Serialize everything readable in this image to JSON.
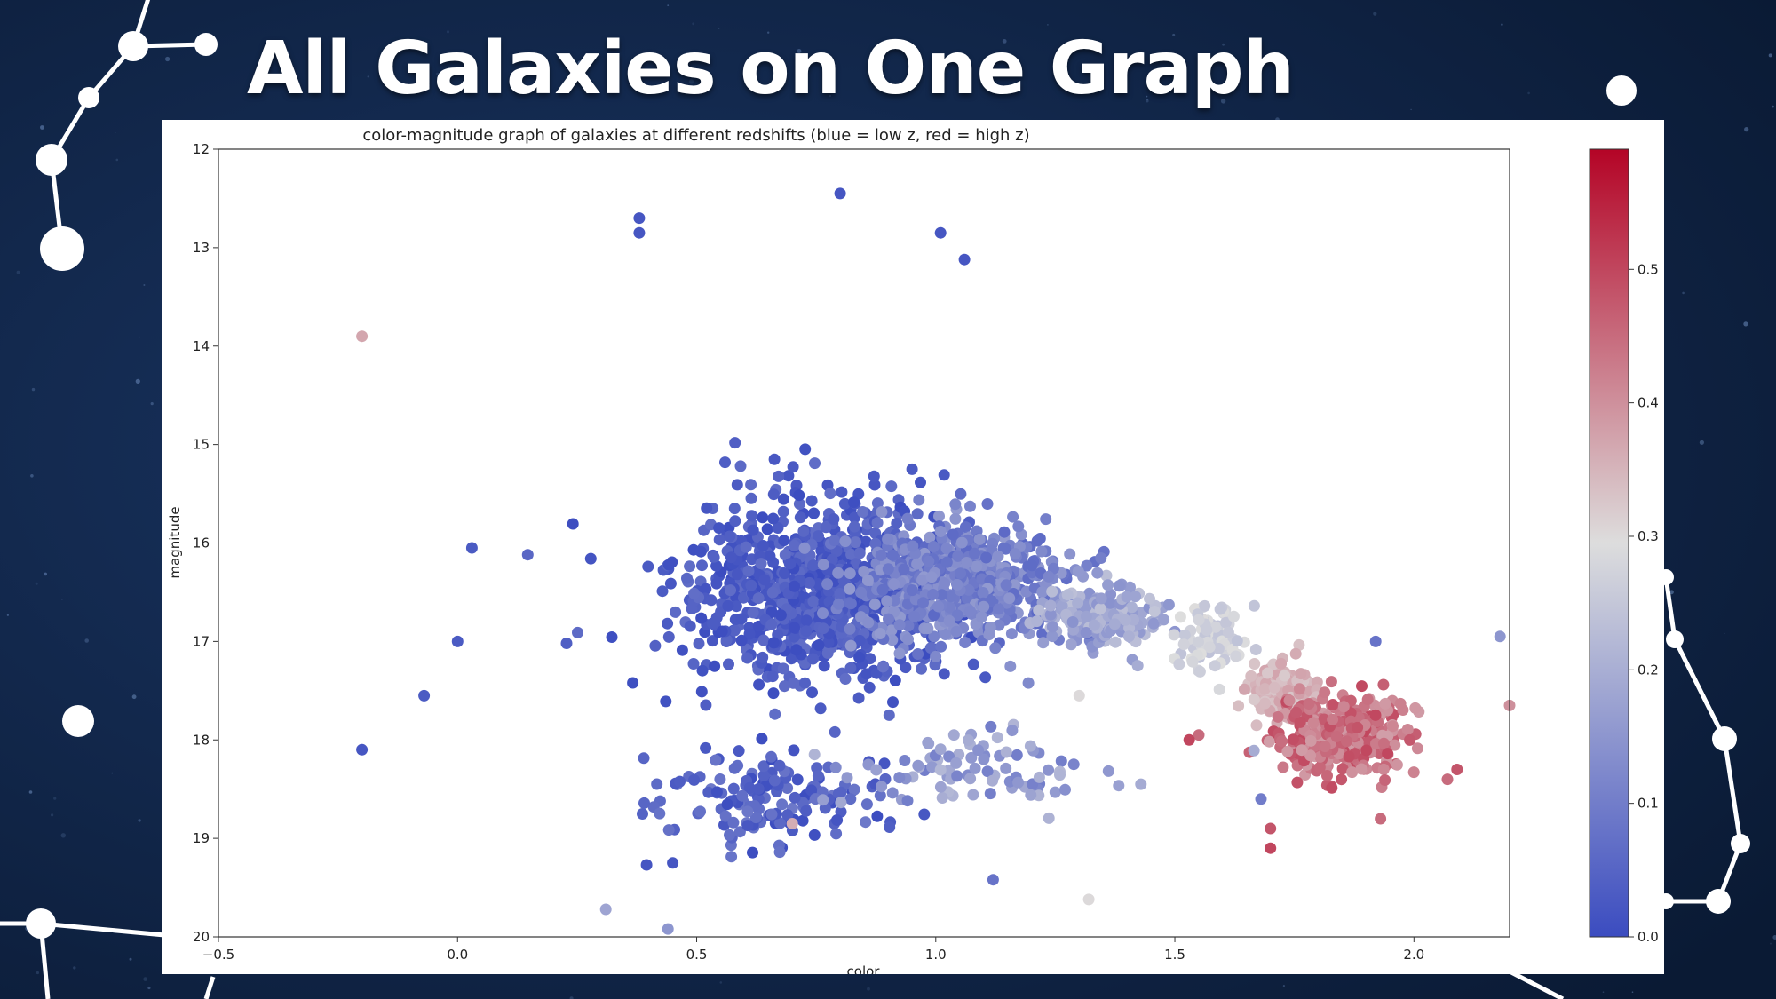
{
  "slide": {
    "title": "All Galaxies on One Graph"
  },
  "colors": {
    "background": "#0c1e3b",
    "panel": "#ffffff",
    "constellation": "#ffffff"
  },
  "chart_data": {
    "type": "scatter",
    "title": "color-magnitude graph of galaxies at different redshifts (blue = low z, red = high z)",
    "xlabel": "color",
    "ylabel": "magnitude",
    "xlim": [
      -0.5,
      2.2
    ],
    "ylim": [
      20,
      12
    ],
    "y_inverted": true,
    "x_ticks": [
      -0.5,
      0.0,
      0.5,
      1.0,
      1.5,
      2.0
    ],
    "x_tick_labels": [
      "−0.5",
      "0.0",
      "0.5",
      "1.0",
      "1.5",
      "2.0"
    ],
    "y_ticks": [
      12,
      13,
      14,
      15,
      16,
      17,
      18,
      19,
      20
    ],
    "y_tick_labels": [
      "12",
      "13",
      "14",
      "15",
      "16",
      "17",
      "18",
      "19",
      "20"
    ],
    "grid": false,
    "colormap": "coolwarm",
    "colorbar": {
      "range": [
        0.0,
        0.59
      ],
      "ticks": [
        0.0,
        0.1,
        0.2,
        0.3,
        0.4,
        0.5
      ],
      "tick_labels": [
        "0.0",
        "0.1",
        "0.2",
        "0.3",
        "0.4",
        "0.5"
      ],
      "low_color": "#3b4cc0",
      "mid_color": "#dddddd",
      "high_color": "#b40426"
    },
    "clusters": [
      {
        "center": [
          0.75,
          16.5
        ],
        "spread": [
          0.25,
          0.75
        ],
        "z": [
          0.0,
          0.07
        ],
        "count": 950
      },
      {
        "center": [
          1.05,
          16.4
        ],
        "spread": [
          0.18,
          0.5
        ],
        "z": [
          0.06,
          0.16
        ],
        "count": 650
      },
      {
        "center": [
          1.35,
          16.75
        ],
        "spread": [
          0.1,
          0.25
        ],
        "z": [
          0.14,
          0.24
        ],
        "count": 200
      },
      {
        "center": [
          1.58,
          16.95
        ],
        "spread": [
          0.06,
          0.25
        ],
        "z": [
          0.24,
          0.3
        ],
        "count": 90
      },
      {
        "center": [
          1.72,
          17.5
        ],
        "spread": [
          0.06,
          0.25
        ],
        "z": [
          0.32,
          0.38
        ],
        "count": 150
      },
      {
        "center": [
          1.85,
          17.95
        ],
        "spread": [
          0.11,
          0.33
        ],
        "z": [
          0.38,
          0.5
        ],
        "count": 380
      },
      {
        "center": [
          0.65,
          18.6
        ],
        "spread": [
          0.18,
          0.35
        ],
        "z": [
          0.0,
          0.09
        ],
        "count": 160
      },
      {
        "center": [
          1.1,
          18.3
        ],
        "spread": [
          0.22,
          0.35
        ],
        "z": [
          0.1,
          0.22
        ],
        "count": 90
      }
    ],
    "outliers": [
      {
        "x": -0.2,
        "y": 13.9,
        "z": 0.37
      },
      {
        "x": -0.2,
        "y": 18.1,
        "z": 0.02
      },
      {
        "x": 0.38,
        "y": 12.7,
        "z": 0.02
      },
      {
        "x": 0.38,
        "y": 12.85,
        "z": 0.02
      },
      {
        "x": 0.8,
        "y": 12.45,
        "z": 0.02
      },
      {
        "x": 1.01,
        "y": 12.85,
        "z": 0.02
      },
      {
        "x": 1.06,
        "y": 13.12,
        "z": 0.02
      },
      {
        "x": 0.03,
        "y": 16.05,
        "z": 0.03
      },
      {
        "x": 0.0,
        "y": 17.0,
        "z": 0.03
      },
      {
        "x": -0.07,
        "y": 17.55,
        "z": 0.03
      },
      {
        "x": 0.7,
        "y": 18.85,
        "z": 0.36
      },
      {
        "x": 1.3,
        "y": 17.55,
        "z": 0.3
      },
      {
        "x": 1.32,
        "y": 19.62,
        "z": 0.3
      },
      {
        "x": 1.12,
        "y": 19.42,
        "z": 0.08
      },
      {
        "x": 1.92,
        "y": 17.0,
        "z": 0.08
      },
      {
        "x": 2.18,
        "y": 16.95,
        "z": 0.15
      },
      {
        "x": 2.2,
        "y": 17.65,
        "z": 0.4
      },
      {
        "x": 1.68,
        "y": 18.6,
        "z": 0.1
      },
      {
        "x": 1.7,
        "y": 18.9,
        "z": 0.48
      },
      {
        "x": 1.7,
        "y": 19.1,
        "z": 0.5
      },
      {
        "x": 1.93,
        "y": 18.8,
        "z": 0.45
      },
      {
        "x": 2.07,
        "y": 18.4,
        "z": 0.45
      },
      {
        "x": 2.09,
        "y": 18.3,
        "z": 0.48
      },
      {
        "x": 1.55,
        "y": 17.95,
        "z": 0.45
      },
      {
        "x": 1.53,
        "y": 18.0,
        "z": 0.5
      },
      {
        "x": 0.44,
        "y": 19.92,
        "z": 0.15
      },
      {
        "x": 0.31,
        "y": 19.72,
        "z": 0.18
      },
      {
        "x": 0.45,
        "y": 19.25,
        "z": 0.02
      }
    ]
  }
}
